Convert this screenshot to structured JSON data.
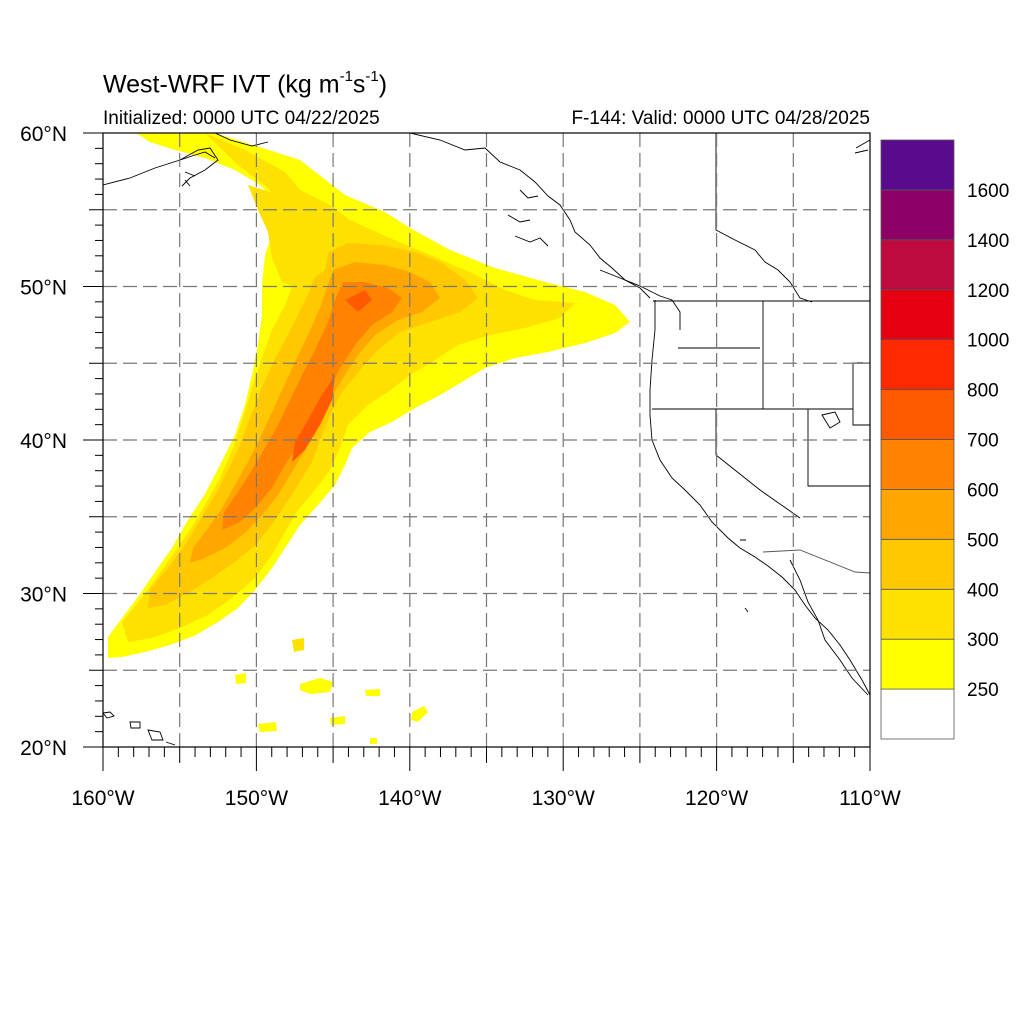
{
  "title": {
    "prefix": "West-WRF IVT (kg m",
    "exp1": "-1",
    "middle": "s",
    "exp2": "-1",
    "suffix": ")"
  },
  "subtitle_left": "Initialized: 0000 UTC 04/22/2025",
  "subtitle_right": "F-144: Valid: 0000 UTC 04/28/2025",
  "map": {
    "lon_range": [
      -160,
      -110
    ],
    "lat_range": [
      20,
      60
    ],
    "x_ticks": [
      {
        "value": -160,
        "label": "160°W"
      },
      {
        "value": -150,
        "label": "150°W"
      },
      {
        "value": -140,
        "label": "140°W"
      },
      {
        "value": -130,
        "label": "130°W"
      },
      {
        "value": -120,
        "label": "120°W"
      },
      {
        "value": -110,
        "label": "110°W"
      }
    ],
    "y_ticks": [
      {
        "value": 20,
        "label": "20°N"
      },
      {
        "value": 30,
        "label": "30°N"
      },
      {
        "value": 40,
        "label": "40°N"
      },
      {
        "value": 50,
        "label": "50°N"
      },
      {
        "value": 60,
        "label": "60°N"
      }
    ],
    "gridlines": "dashed"
  },
  "colorbar": {
    "levels": [
      250,
      300,
      400,
      500,
      600,
      700,
      800,
      1000,
      1200,
      1400,
      1600
    ],
    "labels": [
      "250",
      "300",
      "400",
      "500",
      "600",
      "700",
      "800",
      "1000",
      "1200",
      "1400",
      "1600"
    ],
    "colors": [
      "#ffffff",
      "#ffff00",
      "#ffe100",
      "#ffc800",
      "#ffa700",
      "#ff8300",
      "#ff5a00",
      "#ff2800",
      "#e60012",
      "#bf0a3f",
      "#8c0065",
      "#5a0a8c"
    ]
  },
  "chart_data": {
    "type": "heatmap",
    "variable": "IVT",
    "units": "kg m-1 s-1",
    "plume_axis": [
      {
        "lon": -159.0,
        "lat": 28.5,
        "ivt": 300
      },
      {
        "lon": -155.0,
        "lat": 30.5,
        "ivt": 400
      },
      {
        "lon": -152.0,
        "lat": 33.5,
        "ivt": 600
      },
      {
        "lon": -149.5,
        "lat": 36.5,
        "ivt": 650
      },
      {
        "lon": -147.0,
        "lat": 40.0,
        "ivt": 700
      },
      {
        "lon": -145.0,
        "lat": 44.0,
        "ivt": 700
      },
      {
        "lon": -143.5,
        "lat": 48.0,
        "ivt": 700
      },
      {
        "lon": -141.0,
        "lat": 49.0,
        "ivt": 500
      },
      {
        "lon": -133.0,
        "lat": 48.5,
        "ivt": 300
      },
      {
        "lon": -126.0,
        "lat": 48.0,
        "ivt": 250
      }
    ],
    "northern_branch": [
      {
        "lon": -155.0,
        "lat": 59.5,
        "ivt": 300
      },
      {
        "lon": -150.0,
        "lat": 57.0,
        "ivt": 300
      },
      {
        "lon": -145.0,
        "lat": 54.5,
        "ivt": 400
      }
    ],
    "peak": {
      "lon": -143.5,
      "lat": 48.5,
      "ivt": 700
    },
    "landfall": {
      "lon": -125.5,
      "lat": 48.0,
      "ivt": 250
    }
  }
}
